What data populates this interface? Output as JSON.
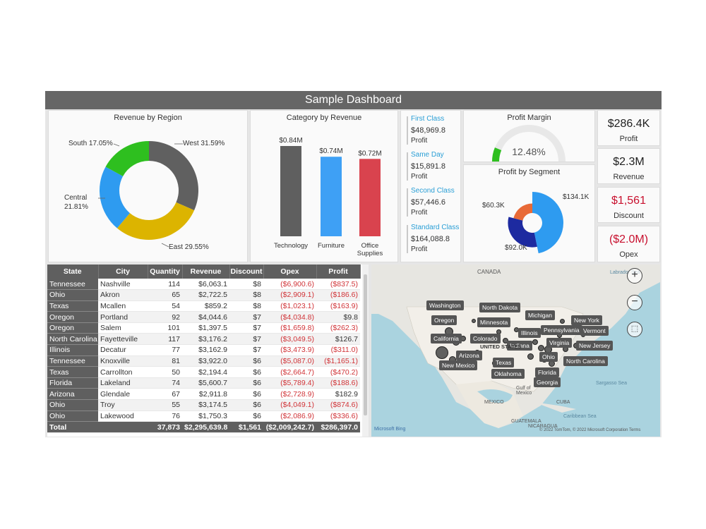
{
  "title": "Sample Dashboard",
  "region_chart": {
    "title": "Revenue by Region",
    "slices": [
      {
        "label": "West 31.59%",
        "name": "West",
        "value": 31.59,
        "color": "#606060"
      },
      {
        "label": "East 29.55%",
        "name": "East",
        "value": 29.55,
        "color": "#dcb400"
      },
      {
        "label": "Central",
        "label2": "21.81%",
        "name": "Central",
        "value": 21.81,
        "color": "#2e9bf0"
      },
      {
        "label": "South 17.05%",
        "name": "South",
        "value": 17.05,
        "color": "#2ebf1f"
      }
    ]
  },
  "category_chart": {
    "title": "Category by Revenue",
    "bars": [
      {
        "label": "Technology",
        "value_label": "$0.84M",
        "value": 0.84,
        "color": "#5f5f5f"
      },
      {
        "label": "Furniture",
        "value_label": "$0.74M",
        "value": 0.74,
        "color": "#3ea0f5"
      },
      {
        "label": "Office Supplies",
        "value_label": "$0.72M",
        "value": 0.72,
        "color": "#d9434e"
      }
    ]
  },
  "ship_modes": [
    {
      "label": "First Class",
      "value": "$48,969.8",
      "sub": "Profit"
    },
    {
      "label": "Same Day",
      "value": "$15,891.8",
      "sub": "Profit"
    },
    {
      "label": "Second Class",
      "value": "$57,446.6",
      "sub": "Profit"
    },
    {
      "label": "Standard Class",
      "value": "$164,088.8",
      "sub": "Profit"
    }
  ],
  "profit_margin": {
    "title": "Profit Margin",
    "value_label": "12.48%",
    "value": 12.48,
    "color": "#2ebf1f"
  },
  "segment_chart": {
    "title": "Profit by Segment",
    "slices": [
      {
        "label": "$134.1K",
        "value": 134.1,
        "color": "#2e9bf0"
      },
      {
        "label": "$92.0K",
        "value": 92.0,
        "color": "#1d2aa0"
      },
      {
        "label": "$60.3K",
        "value": 60.3,
        "color": "#e86a37"
      }
    ]
  },
  "kpis": [
    {
      "value": "$286.4K",
      "label": "Profit",
      "color": "#222222"
    },
    {
      "value": "$2.3M",
      "label": "Revenue",
      "color": "#222222"
    },
    {
      "value": "$1,561",
      "label": "Discount",
      "color": "#c8102e"
    },
    {
      "value": "($2.0M)",
      "label": "Opex",
      "color": "#c8102e"
    }
  ],
  "table": {
    "headers": [
      "State",
      "City",
      "Quantity",
      "Revenue",
      "Discount",
      "Opex",
      "Profit"
    ],
    "rows": [
      [
        "Tennessee",
        "Nashville",
        "114",
        "$6,063.1",
        "$8",
        "($6,900.6)",
        "($837.5)"
      ],
      [
        "Ohio",
        "Akron",
        "65",
        "$2,722.5",
        "$8",
        "($2,909.1)",
        "($186.6)"
      ],
      [
        "Texas",
        "Mcallen",
        "54",
        "$859.2",
        "$8",
        "($1,023.1)",
        "($163.9)"
      ],
      [
        "Oregon",
        "Portland",
        "92",
        "$4,044.6",
        "$7",
        "($4,034.8)",
        "$9.8"
      ],
      [
        "Oregon",
        "Salem",
        "101",
        "$1,397.5",
        "$7",
        "($1,659.8)",
        "($262.3)"
      ],
      [
        "North Carolina",
        "Fayetteville",
        "117",
        "$3,176.2",
        "$7",
        "($3,049.5)",
        "$126.7"
      ],
      [
        "Illinois",
        "Decatur",
        "77",
        "$3,162.9",
        "$7",
        "($3,473.9)",
        "($311.0)"
      ],
      [
        "Tennessee",
        "Knoxville",
        "81",
        "$3,922.0",
        "$6",
        "($5,087.0)",
        "($1,165.1)"
      ],
      [
        "Texas",
        "Carrollton",
        "50",
        "$2,194.4",
        "$6",
        "($2,664.7)",
        "($470.2)"
      ],
      [
        "Florida",
        "Lakeland",
        "74",
        "$5,600.7",
        "$6",
        "($5,789.4)",
        "($188.6)"
      ],
      [
        "Arizona",
        "Glendale",
        "67",
        "$2,911.8",
        "$6",
        "($2,728.9)",
        "$182.9"
      ],
      [
        "Ohio",
        "Troy",
        "55",
        "$3,174.5",
        "$6",
        "($4,049.1)",
        "($874.6)"
      ],
      [
        "Ohio",
        "Lakewood",
        "76",
        "$1,750.3",
        "$6",
        "($2,086.9)",
        "($336.6)"
      ]
    ],
    "total": [
      "Total",
      "",
      "37,873",
      "$2,295,639.8",
      "$1,561",
      "($2,009,242.7)",
      "$286,397.0"
    ]
  },
  "map": {
    "states": [
      "Washington",
      "North Dakota",
      "Oregon",
      "Minnesota",
      "Michigan",
      "New York",
      "Pennsylvania",
      "Vermont",
      "Illinois",
      "California",
      "Colorado",
      "Indiana",
      "Virginia",
      "New Jersey",
      "UNITED STATES",
      "Arizona",
      "Ohio",
      "New Mexico",
      "Texas",
      "Oklahoma",
      "North Carolina",
      "Florida",
      "Georgia"
    ],
    "geo": {
      "canada": "CANADA",
      "labrador": "Labrador Sea",
      "gulf": "Gulf of Mexico",
      "mexico": "MEXICO",
      "cuba": "CUBA",
      "caribbean": "Caribbean Sea",
      "sargasso": "Sargasso Sea",
      "guatemala": "GUATEMALA",
      "nicaragua": "NICARAGUA"
    },
    "attribution": "© 2022 TomTom, © 2022 Microsoft Corporation  Terms",
    "bing": "Microsoft Bing"
  }
}
